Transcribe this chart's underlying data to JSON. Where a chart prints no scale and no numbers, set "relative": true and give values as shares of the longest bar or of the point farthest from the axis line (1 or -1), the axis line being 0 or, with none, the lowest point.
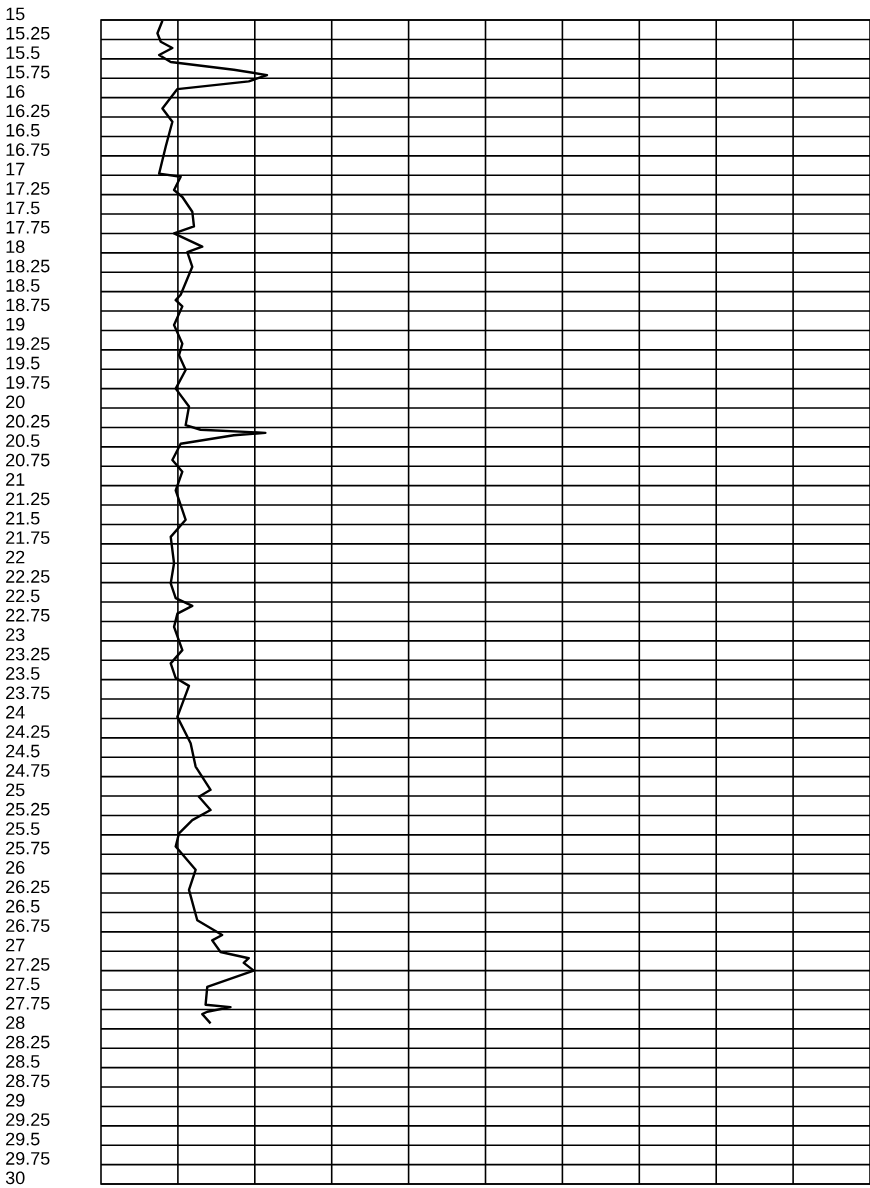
{
  "chart_data": {
    "type": "line",
    "orientation": "horizontal",
    "relative": true,
    "grid": true,
    "ylim": [
      30,
      15
    ],
    "yticks": [
      15,
      15.25,
      15.5,
      15.75,
      16,
      16.25,
      16.5,
      16.75,
      17,
      17.25,
      17.5,
      17.75,
      18,
      18.25,
      18.5,
      18.75,
      19,
      19.25,
      19.5,
      19.75,
      20,
      20.25,
      20.5,
      20.75,
      21,
      21.25,
      21.5,
      21.75,
      22,
      22.25,
      22.5,
      22.75,
      23,
      23.25,
      23.5,
      23.75,
      24,
      24.25,
      24.5,
      24.75,
      25,
      25.25,
      25.5,
      25.75,
      26,
      26.25,
      26.5,
      26.75,
      27,
      27.25,
      27.5,
      27.75,
      28,
      28.25,
      28.5,
      28.75,
      29,
      29.25,
      29.5,
      29.75,
      30
    ],
    "x": [
      15.01,
      15.17,
      15.28,
      15.36,
      15.45,
      15.54,
      15.64,
      15.71,
      15.79,
      15.89,
      16.14,
      16.31,
      16.63,
      16.98,
      17.02,
      17.19,
      17.28,
      17.47,
      17.66,
      17.75,
      17.92,
      17.99,
      18.18,
      18.54,
      18.61,
      18.69,
      18.93,
      19.17,
      19.32,
      19.51,
      19.75,
      19.98,
      20.22,
      20.28,
      20.32,
      20.35,
      20.46,
      20.67,
      20.82,
      21.06,
      21.44,
      21.66,
      22.0,
      22.26,
      22.45,
      22.55,
      22.65,
      22.82,
      23.12,
      23.29,
      23.48,
      23.58,
      23.98,
      24.32,
      24.62,
      24.92,
      25.01,
      25.18,
      25.31,
      25.48,
      25.65,
      25.95,
      26.21,
      26.6,
      26.79,
      26.86,
      27.01,
      27.09,
      27.15,
      27.25,
      27.46,
      27.69,
      27.72,
      27.78,
      27.81,
      27.93
    ],
    "series": [
      {
        "color": "#000000",
        "values": [
          0.37,
          0.34,
          0.36,
          0.43,
          0.35,
          0.42,
          0.8,
          1.0,
          0.89,
          0.46,
          0.37,
          0.43,
          0.39,
          0.35,
          0.48,
          0.44,
          0.49,
          0.55,
          0.56,
          0.44,
          0.61,
          0.52,
          0.55,
          0.48,
          0.45,
          0.49,
          0.44,
          0.49,
          0.47,
          0.51,
          0.45,
          0.53,
          0.51,
          0.6,
          0.99,
          0.8,
          0.48,
          0.43,
          0.49,
          0.45,
          0.51,
          0.42,
          0.44,
          0.42,
          0.45,
          0.55,
          0.46,
          0.44,
          0.49,
          0.42,
          0.45,
          0.53,
          0.46,
          0.54,
          0.57,
          0.66,
          0.59,
          0.66,
          0.55,
          0.47,
          0.45,
          0.57,
          0.53,
          0.58,
          0.73,
          0.67,
          0.72,
          0.89,
          0.86,
          0.92,
          0.64,
          0.63,
          0.78,
          0.64,
          0.61,
          0.66
        ]
      }
    ]
  }
}
